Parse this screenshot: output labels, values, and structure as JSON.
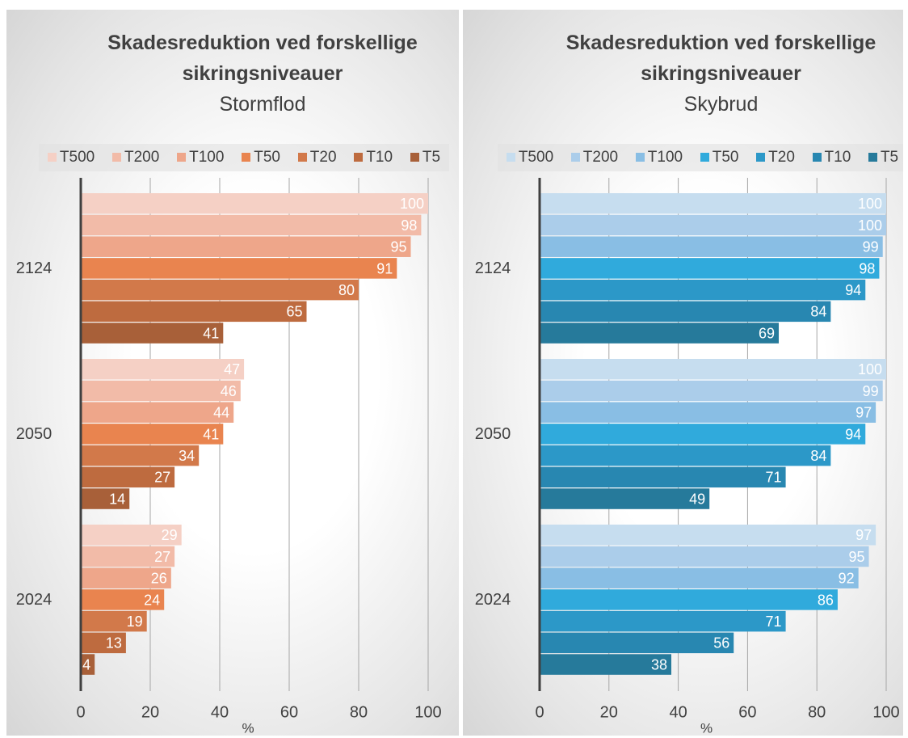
{
  "chart_data": [
    {
      "type": "bar",
      "title": "Skadesreduktion ved forskellige sikringsniveauer",
      "subtitle": "Stormflod",
      "x_label": "%",
      "categories": [
        "2124",
        "2050",
        "2024"
      ],
      "series": [
        {
          "name": "T500",
          "color": "#f5d0c5",
          "values": [
            100,
            47,
            29
          ]
        },
        {
          "name": "T200",
          "color": "#f2bba8",
          "values": [
            98,
            46,
            27
          ]
        },
        {
          "name": "T100",
          "color": "#eea68a",
          "values": [
            95,
            44,
            26
          ]
        },
        {
          "name": "T50",
          "color": "#e9844f",
          "values": [
            91,
            41,
            24
          ]
        },
        {
          "name": "T20",
          "color": "#d2794a",
          "values": [
            80,
            34,
            19
          ]
        },
        {
          "name": "T10",
          "color": "#be6b3f",
          "values": [
            65,
            27,
            13
          ]
        },
        {
          "name": "T5",
          "color": "#a86039",
          "values": [
            41,
            14,
            4
          ]
        }
      ],
      "xlim": [
        0,
        100
      ],
      "xticks": [
        0,
        20,
        40,
        60,
        80,
        100
      ],
      "grid": true
    },
    {
      "type": "bar",
      "title": "Skadesreduktion ved forskellige sikringsniveauer",
      "subtitle": "Skybrud",
      "x_label": "%",
      "categories": [
        "2124",
        "2050",
        "2024"
      ],
      "series": [
        {
          "name": "T500",
          "color": "#c6ddef",
          "values": [
            100,
            100,
            97
          ]
        },
        {
          "name": "T200",
          "color": "#abcdea",
          "values": [
            100,
            99,
            95
          ]
        },
        {
          "name": "T100",
          "color": "#89bee4",
          "values": [
            99,
            97,
            92
          ]
        },
        {
          "name": "T50",
          "color": "#30aadc",
          "values": [
            98,
            94,
            86
          ]
        },
        {
          "name": "T20",
          "color": "#2c98c8",
          "values": [
            94,
            84,
            71
          ]
        },
        {
          "name": "T10",
          "color": "#2887b1",
          "values": [
            84,
            71,
            56
          ]
        },
        {
          "name": "T5",
          "color": "#267a9b",
          "values": [
            69,
            49,
            38
          ]
        }
      ],
      "xlim": [
        0,
        100
      ],
      "xticks": [
        0,
        20,
        40,
        60,
        80,
        100
      ],
      "grid": true
    }
  ]
}
